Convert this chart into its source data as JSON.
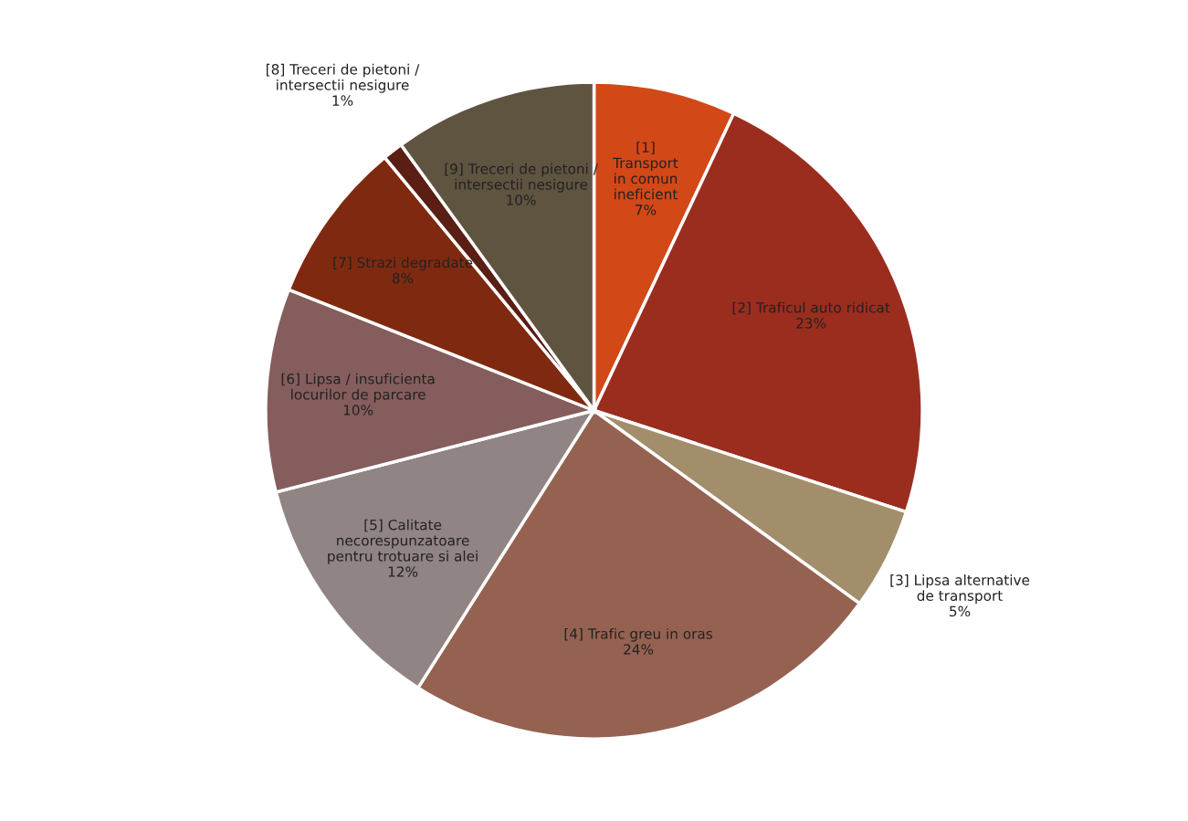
{
  "chart_data": {
    "type": "pie",
    "categories": [
      "[1]\nTransport\nin comun\nineficient",
      "[2] Traficul auto ridicat",
      "[3] Lipsa alternative\nde transport",
      "[4] Trafic greu in oras",
      "[5] Calitate\nnecorespunzatoare\npentru trotuare si alei",
      "[6] Lipsa / insuficienta\nlocurilor de parcare",
      "[7] Strazi degradate",
      "[8] Treceri de pietoni /\nintersectii nesigure",
      "[9] Treceri de pietoni /\nintersectii nesigure"
    ],
    "values": [
      7,
      23,
      5,
      24,
      12,
      10,
      8,
      1,
      10
    ],
    "value_labels": [
      "7%",
      "23%",
      "5%",
      "24%",
      "12%",
      "10%",
      "8%",
      "1%",
      "10%"
    ],
    "colors": [
      "#d34817",
      "#9b2d1f",
      "#a28e6a",
      "#956251",
      "#918485",
      "#855d5d",
      "#7f2a10",
      "#5a1e14",
      "#5f5440"
    ]
  }
}
